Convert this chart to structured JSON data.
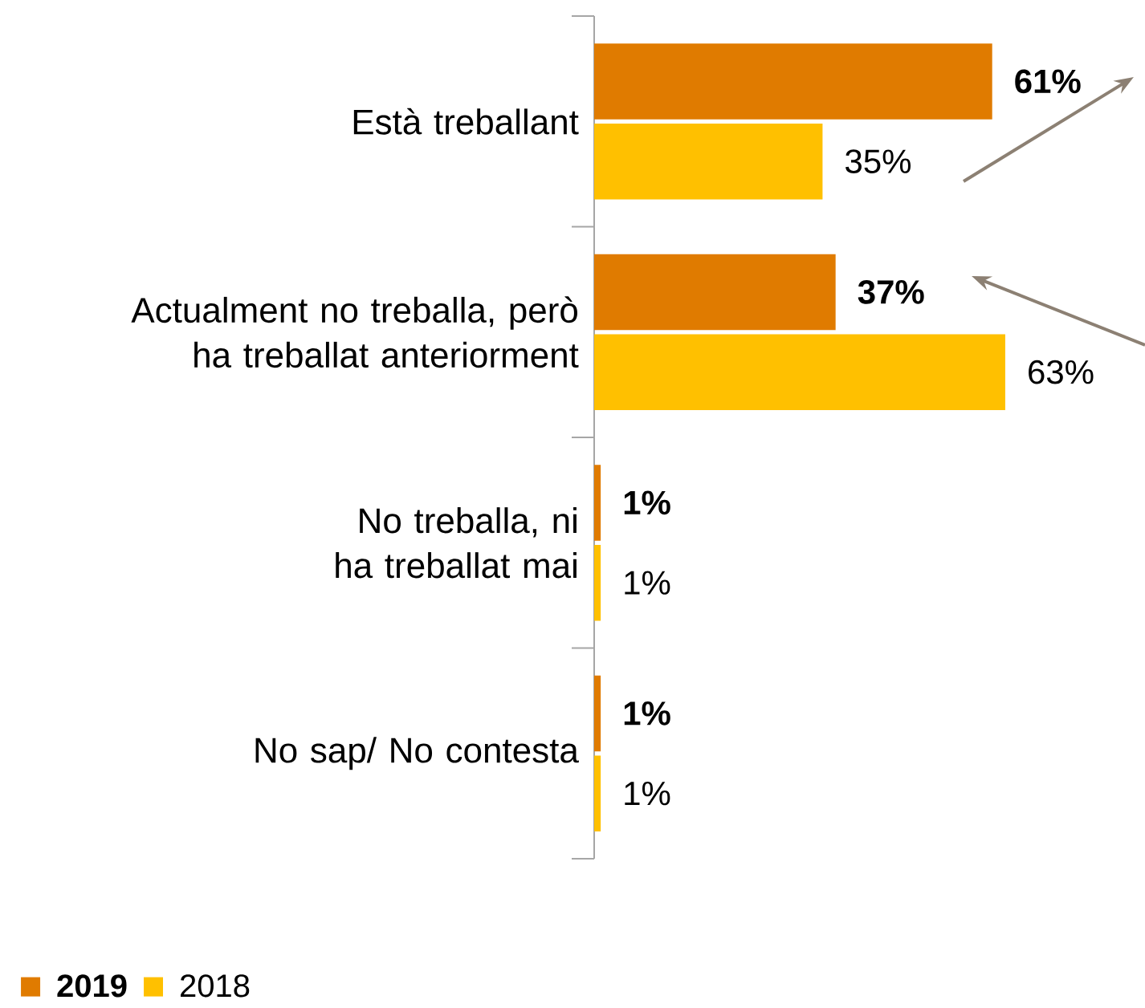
{
  "chart_data": {
    "type": "bar",
    "orientation": "horizontal",
    "categories": [
      "Està treballant",
      "Actualment no treballa, però ha treballat anteriorment",
      "No treballa, ni ha treballat mai",
      "No sap/ No contesta"
    ],
    "series": [
      {
        "name": "2019",
        "color": "#e07b00",
        "values": [
          61,
          37,
          1,
          1
        ],
        "value_labels": [
          "61%",
          "37%",
          "1%",
          "1%"
        ]
      },
      {
        "name": "2018",
        "color": "#ffc000",
        "values": [
          35,
          63,
          1,
          1
        ],
        "value_labels": [
          "35%",
          "63%",
          "1%",
          "1%"
        ]
      }
    ],
    "legend": "bottom left"
  }
}
